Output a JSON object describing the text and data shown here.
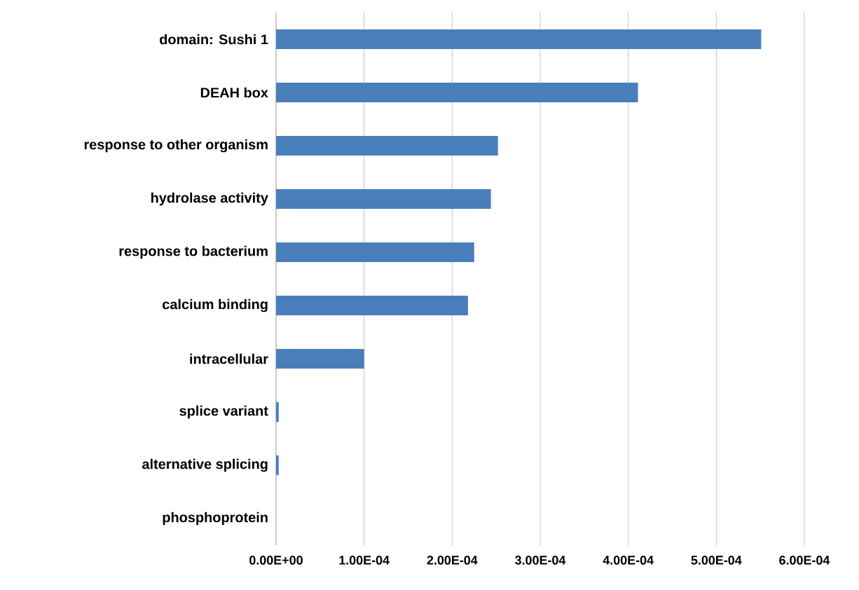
{
  "chart_data": {
    "type": "bar",
    "orientation": "horizontal",
    "categories": [
      "domain: Sushi 1",
      "DEAH box",
      "response to other organism",
      "hydrolase activity",
      "response to bacterium",
      "calcium binding",
      "intracellular",
      "splice variant",
      "alternative splicing",
      "phosphoprotein"
    ],
    "values": [
      0.000551,
      0.000411,
      0.000252,
      0.000244,
      0.000225,
      0.000218,
      0.0001,
      3e-06,
      3e-06,
      0
    ],
    "color": "#4a7ebb",
    "xlim": [
      0,
      0.0006
    ],
    "xticks": [
      {
        "value": 0,
        "label": "0.00E+00"
      },
      {
        "value": 0.0001,
        "label": "1.00E-04"
      },
      {
        "value": 0.0002,
        "label": "2.00E-04"
      },
      {
        "value": 0.0003,
        "label": "3.00E-04"
      },
      {
        "value": 0.0004,
        "label": "4.00E-04"
      },
      {
        "value": 0.0005,
        "label": "5.00E-04"
      },
      {
        "value": 0.0006,
        "label": "6.00E-04"
      }
    ],
    "grid": "x"
  }
}
